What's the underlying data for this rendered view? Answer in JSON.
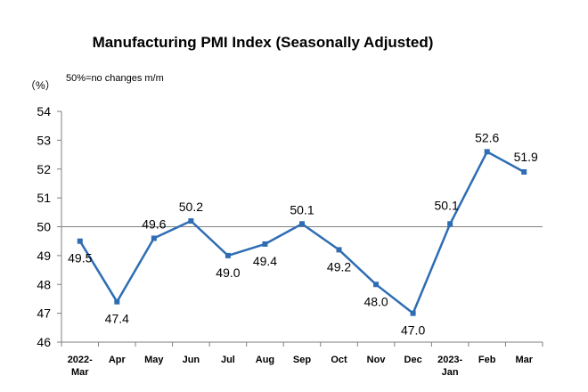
{
  "chart_data": {
    "type": "line",
    "title": "Manufacturing PMI Index (Seasonally Adjusted)",
    "unit": "（%）",
    "note": "50%=no changes m/m",
    "categories": [
      [
        "2022-",
        "Mar"
      ],
      [
        "Apr"
      ],
      [
        "May"
      ],
      [
        "Jun"
      ],
      [
        "Jul"
      ],
      [
        "Aug"
      ],
      [
        "Sep"
      ],
      [
        "Oct"
      ],
      [
        "Nov"
      ],
      [
        "Dec"
      ],
      [
        "2023-",
        "Jan"
      ],
      [
        "Feb"
      ],
      [
        "Mar"
      ]
    ],
    "series": [
      {
        "values": [
          49.5,
          47.4,
          49.6,
          50.2,
          49.0,
          49.4,
          50.1,
          49.2,
          48.0,
          47.0,
          50.1,
          52.6,
          51.9
        ],
        "labels": [
          "49.5",
          "47.4",
          "49.6",
          "50.2",
          "49.0",
          "49.4",
          "50.1",
          "49.2",
          "48.0",
          "47.0",
          "50.1",
          "52.6",
          "51.9"
        ],
        "color": "#2e6db4"
      }
    ],
    "ylim": [
      46,
      54
    ],
    "yticks": [
      "46",
      "47",
      "48",
      "49",
      "50",
      "51",
      "52",
      "53",
      "54"
    ],
    "reference_line": 50,
    "grid": false
  }
}
